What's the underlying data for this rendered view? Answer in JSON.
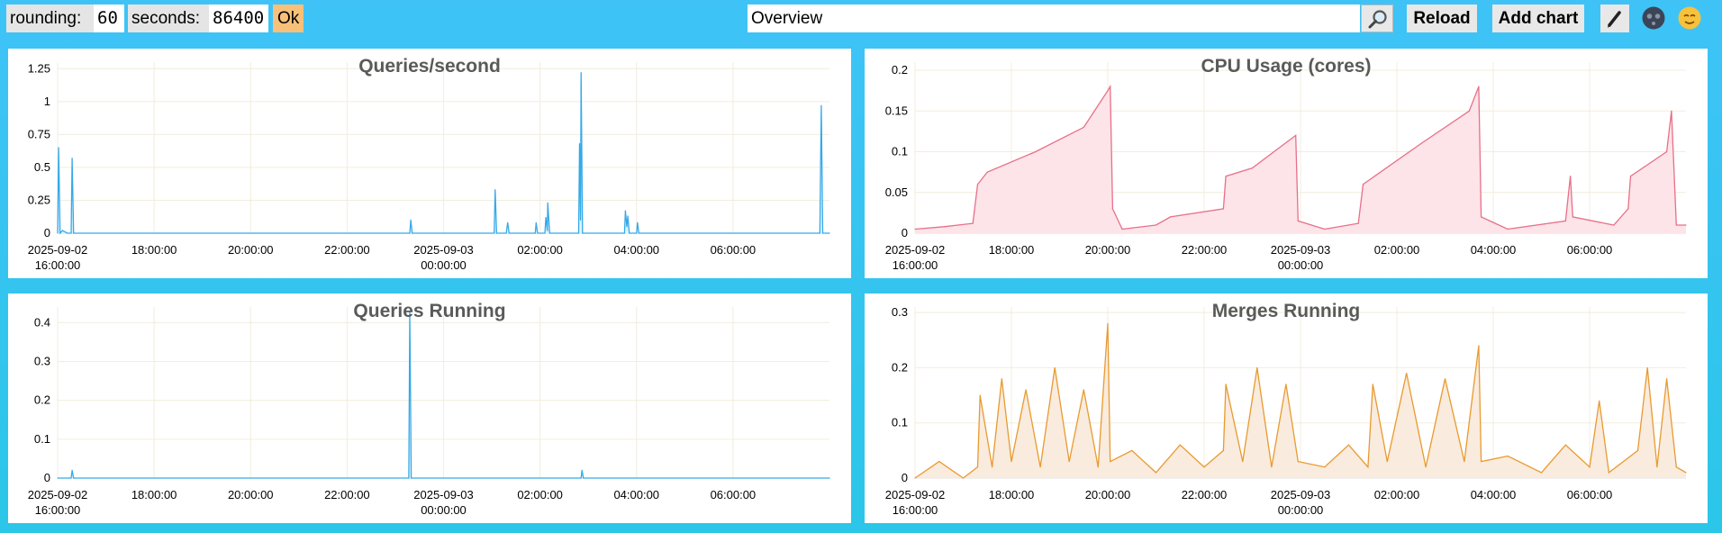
{
  "toolbar": {
    "rounding_label": "rounding:",
    "rounding_value": "60",
    "seconds_label": "seconds:",
    "seconds_value": "86400",
    "ok_label": "Ok",
    "title_value": "Overview",
    "search_icon": "magnifier-icon",
    "reload_label": "Reload",
    "add_chart_label": "Add chart",
    "edit_icon": "pencil-icon",
    "dark_theme_icon": "moon-icon",
    "light_theme_icon": "sun-icon"
  },
  "chart_data": [
    {
      "type": "line",
      "title": "Queries/second",
      "color": "#35a9e8",
      "fill": "#e3f2fc",
      "ylim": [
        0,
        1.3
      ],
      "yticks": [
        0,
        0.25,
        0.5,
        0.75,
        1,
        1.25
      ],
      "ytick_labels": [
        "0",
        "0.25",
        "0.5",
        "0.75",
        "1",
        "1.25"
      ],
      "x_ticks": [
        {
          "line1": "2025-09-02",
          "line2": "16:00:00"
        },
        {
          "line1": "18:00:00",
          "line2": ""
        },
        {
          "line1": "20:00:00",
          "line2": ""
        },
        {
          "line1": "22:00:00",
          "line2": ""
        },
        {
          "line1": "2025-09-03",
          "line2": "00:00:00"
        },
        {
          "line1": "02:00:00",
          "line2": ""
        },
        {
          "line1": "04:00:00",
          "line2": ""
        },
        {
          "line1": "06:00:00",
          "line2": ""
        }
      ],
      "x_tick_hours": [
        0,
        2,
        4,
        6,
        8,
        10,
        12,
        14
      ],
      "x_range_hours": [
        0,
        16
      ],
      "points": [
        [
          0,
          0
        ],
        [
          0.02,
          0.65
        ],
        [
          0.05,
          0
        ],
        [
          0.1,
          0.02
        ],
        [
          0.2,
          0
        ],
        [
          0.28,
          0
        ],
        [
          0.3,
          0.57
        ],
        [
          0.33,
          0
        ],
        [
          7.3,
          0
        ],
        [
          7.32,
          0.1
        ],
        [
          7.35,
          0
        ],
        [
          9.05,
          0
        ],
        [
          9.07,
          0.33
        ],
        [
          9.1,
          0
        ],
        [
          9.3,
          0
        ],
        [
          9.33,
          0.08
        ],
        [
          9.36,
          0
        ],
        [
          9.9,
          0
        ],
        [
          9.92,
          0.08
        ],
        [
          9.95,
          0
        ],
        [
          10.1,
          0
        ],
        [
          10.12,
          0.12
        ],
        [
          10.15,
          0.02
        ],
        [
          10.16,
          0.23
        ],
        [
          10.2,
          0
        ],
        [
          10.8,
          0
        ],
        [
          10.82,
          0.68
        ],
        [
          10.84,
          0.1
        ],
        [
          10.85,
          1.22
        ],
        [
          10.88,
          0
        ],
        [
          11.75,
          0
        ],
        [
          11.77,
          0.17
        ],
        [
          11.8,
          0.05
        ],
        [
          11.82,
          0.13
        ],
        [
          11.85,
          0
        ],
        [
          12.0,
          0
        ],
        [
          12.02,
          0.08
        ],
        [
          12.05,
          0
        ],
        [
          15.8,
          0
        ],
        [
          15.83,
          0.97
        ],
        [
          15.86,
          0
        ],
        [
          16,
          0
        ]
      ]
    },
    {
      "type": "area",
      "title": "CPU Usage (cores)",
      "color": "#e86f88",
      "fill": "#fde4e8",
      "ylim": [
        0,
        0.21
      ],
      "yticks": [
        0,
        0.05,
        0.1,
        0.15,
        0.2
      ],
      "ytick_labels": [
        "0",
        "0.05",
        "0.1",
        "0.15",
        "0.2"
      ],
      "x_ticks": [
        {
          "line1": "2025-09-02",
          "line2": "16:00:00"
        },
        {
          "line1": "18:00:00",
          "line2": ""
        },
        {
          "line1": "20:00:00",
          "line2": ""
        },
        {
          "line1": "22:00:00",
          "line2": ""
        },
        {
          "line1": "2025-09-03",
          "line2": "00:00:00"
        },
        {
          "line1": "02:00:00",
          "line2": ""
        },
        {
          "line1": "04:00:00",
          "line2": ""
        },
        {
          "line1": "06:00:00",
          "line2": ""
        }
      ],
      "x_tick_hours": [
        0,
        2,
        4,
        6,
        8,
        10,
        12,
        14
      ],
      "x_range_hours": [
        0,
        16
      ],
      "points": [
        [
          0,
          0.005
        ],
        [
          0.6,
          0.008
        ],
        [
          1.2,
          0.012
        ],
        [
          1.3,
          0.06
        ],
        [
          1.5,
          0.075
        ],
        [
          2.5,
          0.1
        ],
        [
          3.5,
          0.13
        ],
        [
          4.0,
          0.175
        ],
        [
          4.05,
          0.18
        ],
        [
          4.1,
          0.03
        ],
        [
          4.3,
          0.005
        ],
        [
          5.0,
          0.01
        ],
        [
          5.3,
          0.02
        ],
        [
          6.4,
          0.03
        ],
        [
          6.45,
          0.07
        ],
        [
          7.0,
          0.08
        ],
        [
          7.9,
          0.12
        ],
        [
          7.95,
          0.015
        ],
        [
          8.5,
          0.005
        ],
        [
          9.2,
          0.012
        ],
        [
          9.3,
          0.06
        ],
        [
          10.5,
          0.11
        ],
        [
          11.5,
          0.15
        ],
        [
          11.7,
          0.18
        ],
        [
          11.75,
          0.02
        ],
        [
          12.3,
          0.005
        ],
        [
          13.5,
          0.015
        ],
        [
          13.6,
          0.07
        ],
        [
          13.65,
          0.02
        ],
        [
          14.5,
          0.01
        ],
        [
          14.8,
          0.03
        ],
        [
          14.85,
          0.07
        ],
        [
          15.6,
          0.1
        ],
        [
          15.7,
          0.15
        ],
        [
          15.8,
          0.01
        ],
        [
          16,
          0.01
        ]
      ]
    },
    {
      "type": "line",
      "title": "Queries Running",
      "color": "#35a9e8",
      "fill": "#e3f2fc",
      "ylim": [
        0,
        0.44
      ],
      "yticks": [
        0,
        0.1,
        0.2,
        0.3,
        0.4
      ],
      "ytick_labels": [
        "0",
        "0.1",
        "0.2",
        "0.3",
        "0.4"
      ],
      "x_ticks": [
        {
          "line1": "2025-09-02",
          "line2": "16:00:00"
        },
        {
          "line1": "18:00:00",
          "line2": ""
        },
        {
          "line1": "20:00:00",
          "line2": ""
        },
        {
          "line1": "22:00:00",
          "line2": ""
        },
        {
          "line1": "2025-09-03",
          "line2": "00:00:00"
        },
        {
          "line1": "02:00:00",
          "line2": ""
        },
        {
          "line1": "04:00:00",
          "line2": ""
        },
        {
          "line1": "06:00:00",
          "line2": ""
        }
      ],
      "x_tick_hours": [
        0,
        2,
        4,
        6,
        8,
        10,
        12,
        14
      ],
      "x_range_hours": [
        0,
        16
      ],
      "points": [
        [
          0,
          0
        ],
        [
          0.28,
          0
        ],
        [
          0.3,
          0.02
        ],
        [
          0.33,
          0
        ],
        [
          7.28,
          0
        ],
        [
          7.3,
          0.43
        ],
        [
          7.33,
          0
        ],
        [
          10.85,
          0
        ],
        [
          10.87,
          0.02
        ],
        [
          10.9,
          0
        ],
        [
          16,
          0
        ]
      ]
    },
    {
      "type": "area",
      "title": "Merges Running",
      "color": "#e99a2f",
      "fill": "#f9ebdd",
      "ylim": [
        0,
        0.31
      ],
      "yticks": [
        0,
        0.1,
        0.2,
        0.3
      ],
      "ytick_labels": [
        "0",
        "0.1",
        "0.2",
        "0.3"
      ],
      "x_ticks": [
        {
          "line1": "2025-09-02",
          "line2": "16:00:00"
        },
        {
          "line1": "18:00:00",
          "line2": ""
        },
        {
          "line1": "20:00:00",
          "line2": ""
        },
        {
          "line1": "22:00:00",
          "line2": ""
        },
        {
          "line1": "2025-09-03",
          "line2": "00:00:00"
        },
        {
          "line1": "02:00:00",
          "line2": ""
        },
        {
          "line1": "04:00:00",
          "line2": ""
        },
        {
          "line1": "06:00:00",
          "line2": ""
        }
      ],
      "x_tick_hours": [
        0,
        2,
        4,
        6,
        8,
        10,
        12,
        14
      ],
      "x_range_hours": [
        0,
        16
      ],
      "points": [
        [
          0,
          0
        ],
        [
          0.5,
          0.03
        ],
        [
          1.0,
          0
        ],
        [
          1.3,
          0.02
        ],
        [
          1.35,
          0.15
        ],
        [
          1.6,
          0.02
        ],
        [
          1.8,
          0.18
        ],
        [
          2.0,
          0.03
        ],
        [
          2.3,
          0.16
        ],
        [
          2.6,
          0.02
        ],
        [
          2.9,
          0.2
        ],
        [
          3.2,
          0.03
        ],
        [
          3.5,
          0.16
        ],
        [
          3.8,
          0.02
        ],
        [
          4.0,
          0.28
        ],
        [
          4.05,
          0.03
        ],
        [
          4.5,
          0.05
        ],
        [
          5.0,
          0.01
        ],
        [
          5.5,
          0.06
        ],
        [
          6.0,
          0.02
        ],
        [
          6.4,
          0.05
        ],
        [
          6.45,
          0.17
        ],
        [
          6.8,
          0.03
        ],
        [
          7.1,
          0.2
        ],
        [
          7.4,
          0.02
        ],
        [
          7.7,
          0.17
        ],
        [
          7.95,
          0.03
        ],
        [
          8.5,
          0.02
        ],
        [
          9.0,
          0.06
        ],
        [
          9.4,
          0.02
        ],
        [
          9.5,
          0.17
        ],
        [
          9.8,
          0.03
        ],
        [
          10.2,
          0.19
        ],
        [
          10.6,
          0.02
        ],
        [
          11.0,
          0.18
        ],
        [
          11.4,
          0.03
        ],
        [
          11.7,
          0.24
        ],
        [
          11.75,
          0.03
        ],
        [
          12.3,
          0.04
        ],
        [
          13.0,
          0.01
        ],
        [
          13.5,
          0.06
        ],
        [
          14.0,
          0.02
        ],
        [
          14.2,
          0.14
        ],
        [
          14.4,
          0.01
        ],
        [
          15.0,
          0.05
        ],
        [
          15.2,
          0.2
        ],
        [
          15.4,
          0.02
        ],
        [
          15.6,
          0.18
        ],
        [
          15.8,
          0.02
        ],
        [
          16,
          0.01
        ]
      ]
    }
  ]
}
